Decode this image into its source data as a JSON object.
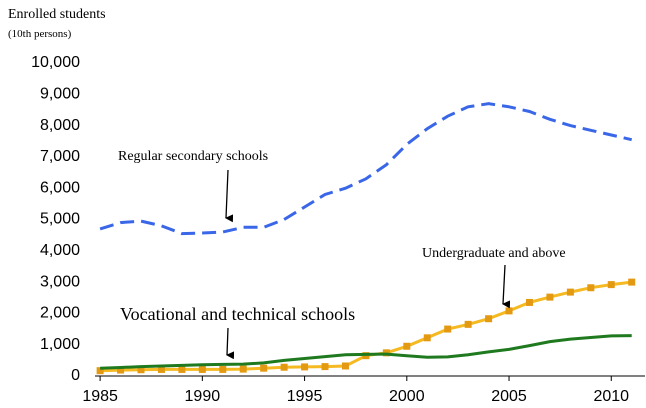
{
  "chart_data": {
    "type": "line",
    "y_axis_title": "Enrolled students",
    "y_axis_subtitle": "(10th persons)",
    "x": [
      1985,
      1986,
      1987,
      1988,
      1989,
      1990,
      1991,
      1992,
      1993,
      1994,
      1995,
      1996,
      1997,
      1998,
      1999,
      2000,
      2001,
      2002,
      2003,
      2004,
      2005,
      2006,
      2007,
      2008,
      2009,
      2010,
      2011
    ],
    "series": [
      {
        "name": "Regular secondary schools",
        "color": "#3a66e8",
        "dash": true,
        "markers": false,
        "values": [
          4700,
          4900,
          4950,
          4800,
          4550,
          4570,
          4600,
          4750,
          4750,
          5000,
          5400,
          5800,
          6000,
          6300,
          6750,
          7400,
          7900,
          8300,
          8600,
          8700,
          8600,
          8450,
          8200,
          8000,
          7850,
          7700,
          7550
        ]
      },
      {
        "name": "Undergraduate and above",
        "color": "#f5b921",
        "marker_color": "#e39a12",
        "dash": false,
        "markers": true,
        "values": [
          170,
          190,
          200,
          210,
          210,
          210,
          210,
          220,
          250,
          280,
          290,
          300,
          320,
          650,
          740,
          950,
          1220,
          1500,
          1650,
          1830,
          2080,
          2350,
          2520,
          2680,
          2820,
          2920,
          3000
        ]
      },
      {
        "name": "Vocational and technical schools",
        "color": "#1f7a1f",
        "dash": false,
        "markers": false,
        "values": [
          250,
          270,
          300,
          320,
          340,
          360,
          370,
          380,
          420,
          500,
          560,
          620,
          680,
          690,
          700,
          650,
          600,
          610,
          680,
          770,
          850,
          970,
          1100,
          1180,
          1230,
          1280,
          1290
        ]
      }
    ],
    "xlim": [
      1984.75,
      2011.65
    ],
    "ylim": [
      0,
      10000
    ],
    "xticks": [
      1985,
      1990,
      1995,
      2000,
      2005,
      2010
    ],
    "yticks": [
      0,
      {
        "value": 1000,
        "label": "1,000"
      },
      {
        "value": 2000,
        "label": "2,000"
      },
      {
        "value": 3000,
        "label": "3,000"
      },
      {
        "value": 4000,
        "label": "4,000"
      },
      {
        "value": 5000,
        "label": "5,000"
      },
      {
        "value": 6000,
        "label": "6,000"
      },
      {
        "value": 7000,
        "label": "7,000"
      },
      {
        "value": 8000,
        "label": "8,000"
      },
      {
        "value": 9000,
        "label": "9,000"
      },
      {
        "value": 10000,
        "label": "10,000"
      }
    ],
    "grid": false
  }
}
